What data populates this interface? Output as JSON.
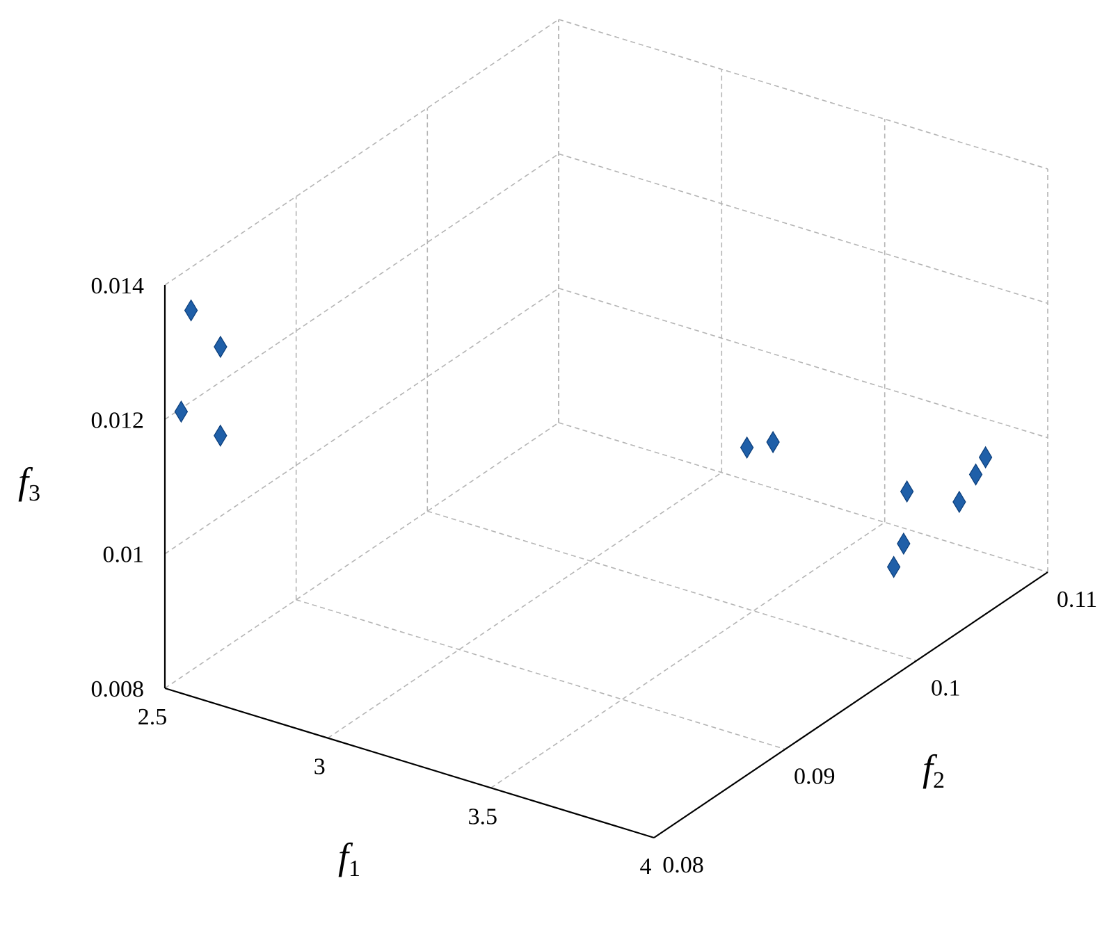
{
  "chart_data": {
    "type": "scatter",
    "title": "",
    "marker_color": "#1f5fa8",
    "marker_shape": "diamond",
    "axes": {
      "x": {
        "label": "f",
        "subscript": "1",
        "range": [
          2.5,
          4
        ],
        "ticks": [
          "2.5",
          "3",
          "3.5",
          "4"
        ]
      },
      "y": {
        "label": "f",
        "subscript": "2",
        "range": [
          0.08,
          0.11
        ],
        "ticks": [
          "0.08",
          "0.09",
          "0.1",
          "0.11"
        ]
      },
      "z": {
        "label": "f",
        "subscript": "3",
        "range": [
          0.008,
          0.014
        ],
        "ticks": [
          "0.008",
          "0.01",
          "0.012",
          "0.014"
        ]
      }
    },
    "grid": true,
    "points": [
      {
        "f1": 2.54,
        "f2": 0.081,
        "f3": 0.01355
      },
      {
        "f1": 2.59,
        "f2": 0.082,
        "f3": 0.01295
      },
      {
        "f1": 2.55,
        "f2": 0.08,
        "f3": 0.01219
      },
      {
        "f1": 2.63,
        "f2": 0.081,
        "f3": 0.01182
      },
      {
        "f1": 3.48,
        "f2": 0.1,
        "f3": 0.0104
      },
      {
        "f1": 3.56,
        "f2": 0.1,
        "f3": 0.0106
      },
      {
        "f1": 3.93,
        "f2": 0.107,
        "f3": 0.01
      },
      {
        "f1": 3.9,
        "f2": 0.107,
        "f3": 0.0097
      },
      {
        "f1": 3.85,
        "f2": 0.103,
        "f3": 0.0099
      },
      {
        "f1": 3.93,
        "f2": 0.105,
        "f3": 0.0096
      },
      {
        "f1": 3.88,
        "f2": 0.102,
        "f3": 0.0093
      },
      {
        "f1": 3.89,
        "f2": 0.101,
        "f3": 0.0091
      }
    ]
  }
}
